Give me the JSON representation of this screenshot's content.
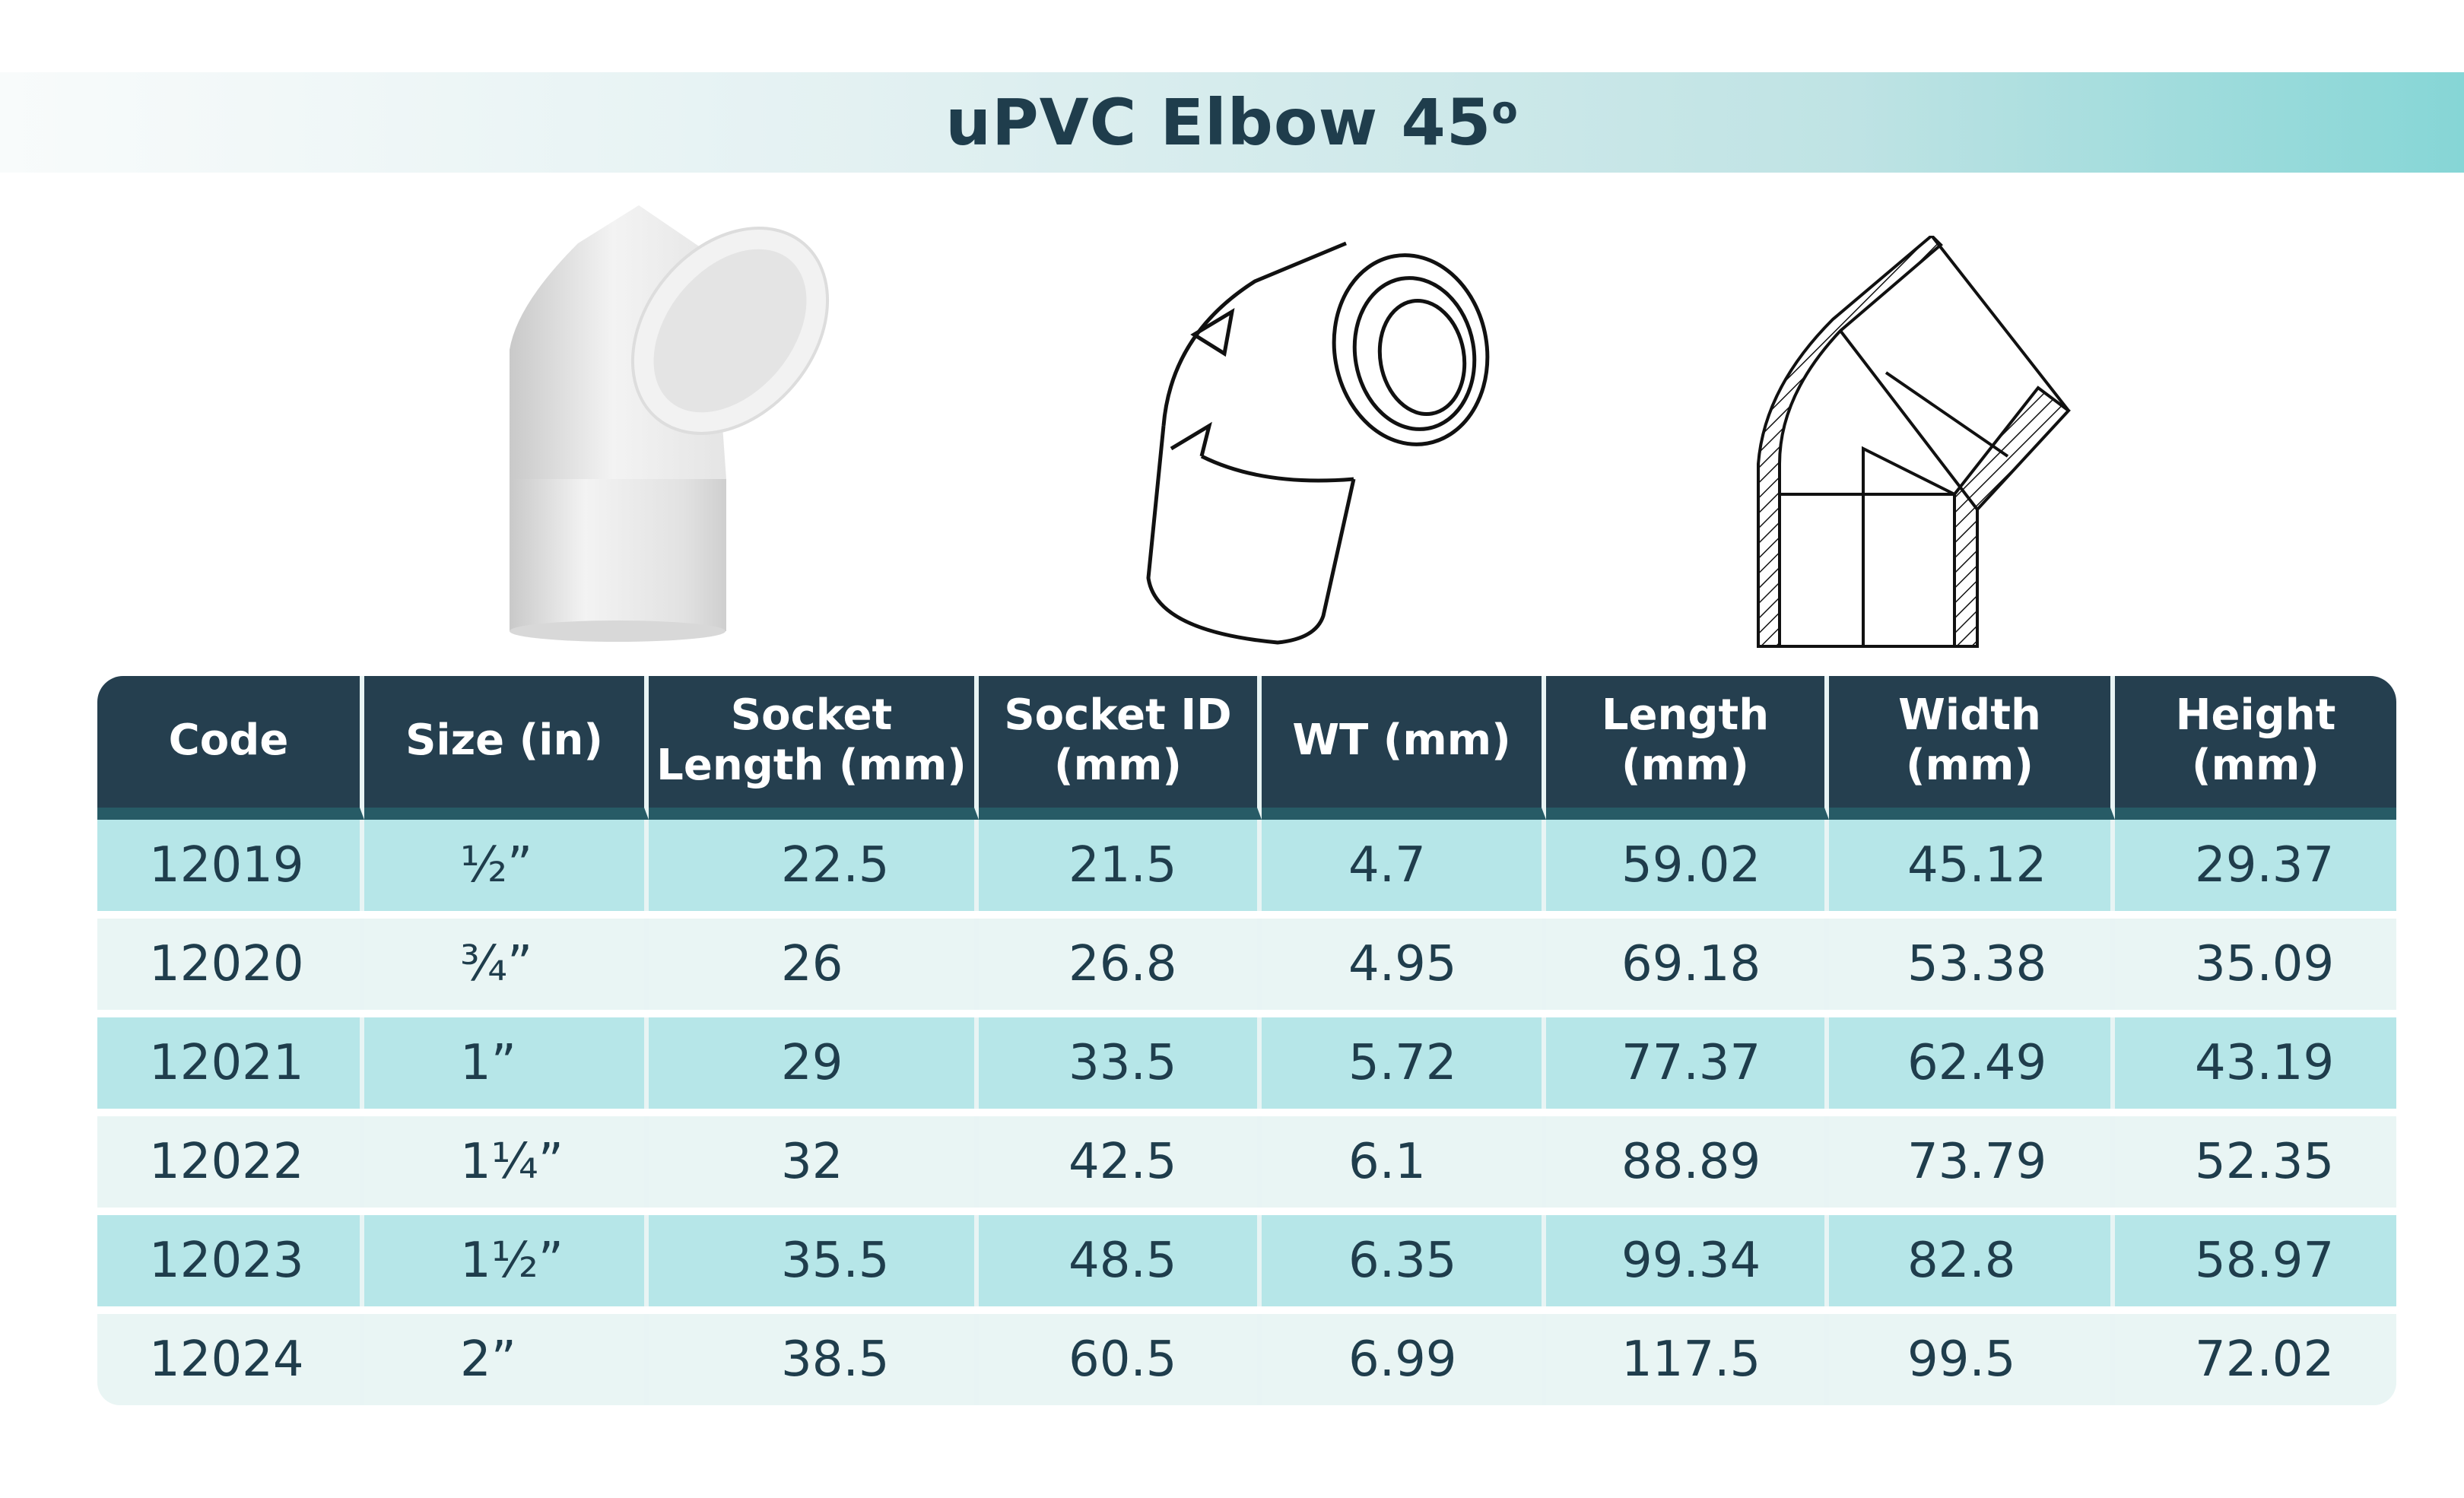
{
  "title": {
    "text": "uPVC Elbow 45",
    "degree": "o"
  },
  "illustrations": [
    "photo-white-elbow",
    "line-drawing-elbow",
    "cross-section-elbow"
  ],
  "colors": {
    "header_bg": "#253f4f",
    "row_dark": "#b6e6e8",
    "row_light": "#e9f5f4",
    "text": "#1f3d4c",
    "band_end": "#86d6d6"
  },
  "table": {
    "headers": [
      "Code",
      "Size (in)",
      "Socket Length (mm)",
      "Socket ID (mm)",
      "WT (mm)",
      "Length (mm)",
      "Width (mm)",
      "Height (mm)"
    ],
    "rows": [
      [
        "12019",
        "½”",
        "22.5",
        "21.5",
        "4.7",
        "59.02",
        "45.12",
        "29.37"
      ],
      [
        "12020",
        "¾”",
        "26",
        "26.8",
        "4.95",
        "69.18",
        "53.38",
        "35.09"
      ],
      [
        "12021",
        "1”",
        "29",
        "33.5",
        "5.72",
        "77.37",
        "62.49",
        "43.19"
      ],
      [
        "12022",
        "1¼”",
        "32",
        "42.5",
        "6.1",
        "88.89",
        "73.79",
        "52.35"
      ],
      [
        "12023",
        "1½”",
        "35.5",
        "48.5",
        "6.35",
        "99.34",
        "82.8",
        "58.97"
      ],
      [
        "12024",
        "2”",
        "38.5",
        "60.5",
        "6.99",
        "117.5",
        "99.5",
        "72.02"
      ]
    ]
  }
}
